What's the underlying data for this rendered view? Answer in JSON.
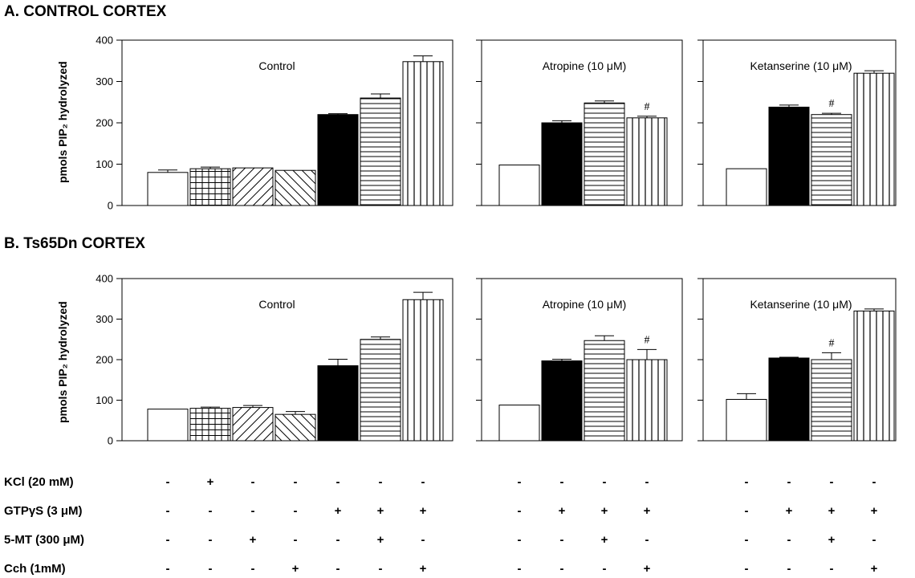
{
  "chart_data": [
    {
      "type": "bar",
      "section": "A. CONTROL CORTEX",
      "ylabel": "pmols PIP₂ hydrolyzed",
      "ylim": [
        0,
        400
      ],
      "yticks": [
        0,
        100,
        200,
        300,
        400
      ],
      "panels": [
        {
          "title": "Control",
          "bars": [
            {
              "value": 80,
              "error": 6,
              "pattern": "white",
              "annotation": ""
            },
            {
              "value": 89,
              "error": 4,
              "pattern": "grid",
              "annotation": ""
            },
            {
              "value": 91,
              "error": 0,
              "pattern": "diag-back",
              "annotation": ""
            },
            {
              "value": 85,
              "error": 0,
              "pattern": "diag-fwd",
              "annotation": ""
            },
            {
              "value": 220,
              "error": 2,
              "pattern": "black",
              "annotation": ""
            },
            {
              "value": 260,
              "error": 10,
              "pattern": "hlines",
              "annotation": ""
            },
            {
              "value": 348,
              "error": 14,
              "pattern": "vlines",
              "annotation": ""
            }
          ]
        },
        {
          "title": "Atropine (10 μM)",
          "bars": [
            {
              "value": 98,
              "error": 0,
              "pattern": "white",
              "annotation": ""
            },
            {
              "value": 200,
              "error": 5,
              "pattern": "black",
              "annotation": ""
            },
            {
              "value": 248,
              "error": 5,
              "pattern": "hlines",
              "annotation": ""
            },
            {
              "value": 212,
              "error": 4,
              "pattern": "vlines",
              "annotation": "#"
            }
          ]
        },
        {
          "title": "Ketanserine (10 μM)",
          "bars": [
            {
              "value": 89,
              "error": 0,
              "pattern": "white",
              "annotation": ""
            },
            {
              "value": 238,
              "error": 5,
              "pattern": "black",
              "annotation": ""
            },
            {
              "value": 220,
              "error": 3,
              "pattern": "hlines",
              "annotation": "#"
            },
            {
              "value": 320,
              "error": 6,
              "pattern": "vlines",
              "annotation": ""
            }
          ]
        }
      ]
    },
    {
      "type": "bar",
      "section": "B. Ts65Dn CORTEX",
      "ylabel": "pmols PIP₂ hydrolyzed",
      "ylim": [
        0,
        400
      ],
      "yticks": [
        0,
        100,
        200,
        300,
        400
      ],
      "panels": [
        {
          "title": "Control",
          "bars": [
            {
              "value": 78,
              "error": 0,
              "pattern": "white",
              "annotation": ""
            },
            {
              "value": 80,
              "error": 3,
              "pattern": "grid",
              "annotation": ""
            },
            {
              "value": 82,
              "error": 5,
              "pattern": "diag-back",
              "annotation": ""
            },
            {
              "value": 65,
              "error": 7,
              "pattern": "diag-fwd",
              "annotation": ""
            },
            {
              "value": 185,
              "error": 16,
              "pattern": "black",
              "annotation": ""
            },
            {
              "value": 250,
              "error": 6,
              "pattern": "hlines",
              "annotation": ""
            },
            {
              "value": 348,
              "error": 18,
              "pattern": "vlines",
              "annotation": ""
            }
          ]
        },
        {
          "title": "Atropine (10 μM)",
          "bars": [
            {
              "value": 88,
              "error": 0,
              "pattern": "white",
              "annotation": ""
            },
            {
              "value": 197,
              "error": 4,
              "pattern": "black",
              "annotation": ""
            },
            {
              "value": 247,
              "error": 12,
              "pattern": "hlines",
              "annotation": ""
            },
            {
              "value": 200,
              "error": 25,
              "pattern": "vlines",
              "annotation": "#"
            }
          ]
        },
        {
          "title": "Ketanserine (10 μM)",
          "bars": [
            {
              "value": 102,
              "error": 14,
              "pattern": "white",
              "annotation": ""
            },
            {
              "value": 204,
              "error": 2,
              "pattern": "black",
              "annotation": ""
            },
            {
              "value": 200,
              "error": 17,
              "pattern": "hlines",
              "annotation": "#"
            },
            {
              "value": 320,
              "error": 5,
              "pattern": "vlines",
              "annotation": ""
            }
          ]
        }
      ]
    }
  ],
  "conditions": [
    {
      "label": "KCl (20 mM)",
      "control": [
        "-",
        "+",
        "-",
        "-",
        "-",
        "-",
        "-"
      ],
      "atropine": [
        "-",
        "-",
        "-",
        "-"
      ],
      "ketanserine": [
        "-",
        "-",
        "-",
        "-"
      ]
    },
    {
      "label": "GTPγS  (3  μM)",
      "control": [
        "-",
        "-",
        "-",
        "-",
        "+",
        "+",
        "+"
      ],
      "atropine": [
        "-",
        "+",
        "+",
        "+"
      ],
      "ketanserine": [
        "-",
        "+",
        "+",
        "+"
      ]
    },
    {
      "label": "5-MT (300 μM)",
      "control": [
        "-",
        "-",
        "+",
        "-",
        "-",
        "+",
        "-"
      ],
      "atropine": [
        "-",
        "-",
        "+",
        "-"
      ],
      "ketanserine": [
        "-",
        "-",
        "+",
        "-"
      ]
    },
    {
      "label": "Cch  (1mM)",
      "control": [
        "-",
        "-",
        "-",
        "+",
        "-",
        "-",
        "+"
      ],
      "atropine": [
        "-",
        "-",
        "-",
        "+"
      ],
      "ketanserine": [
        "-",
        "-",
        "-",
        "+"
      ]
    }
  ]
}
